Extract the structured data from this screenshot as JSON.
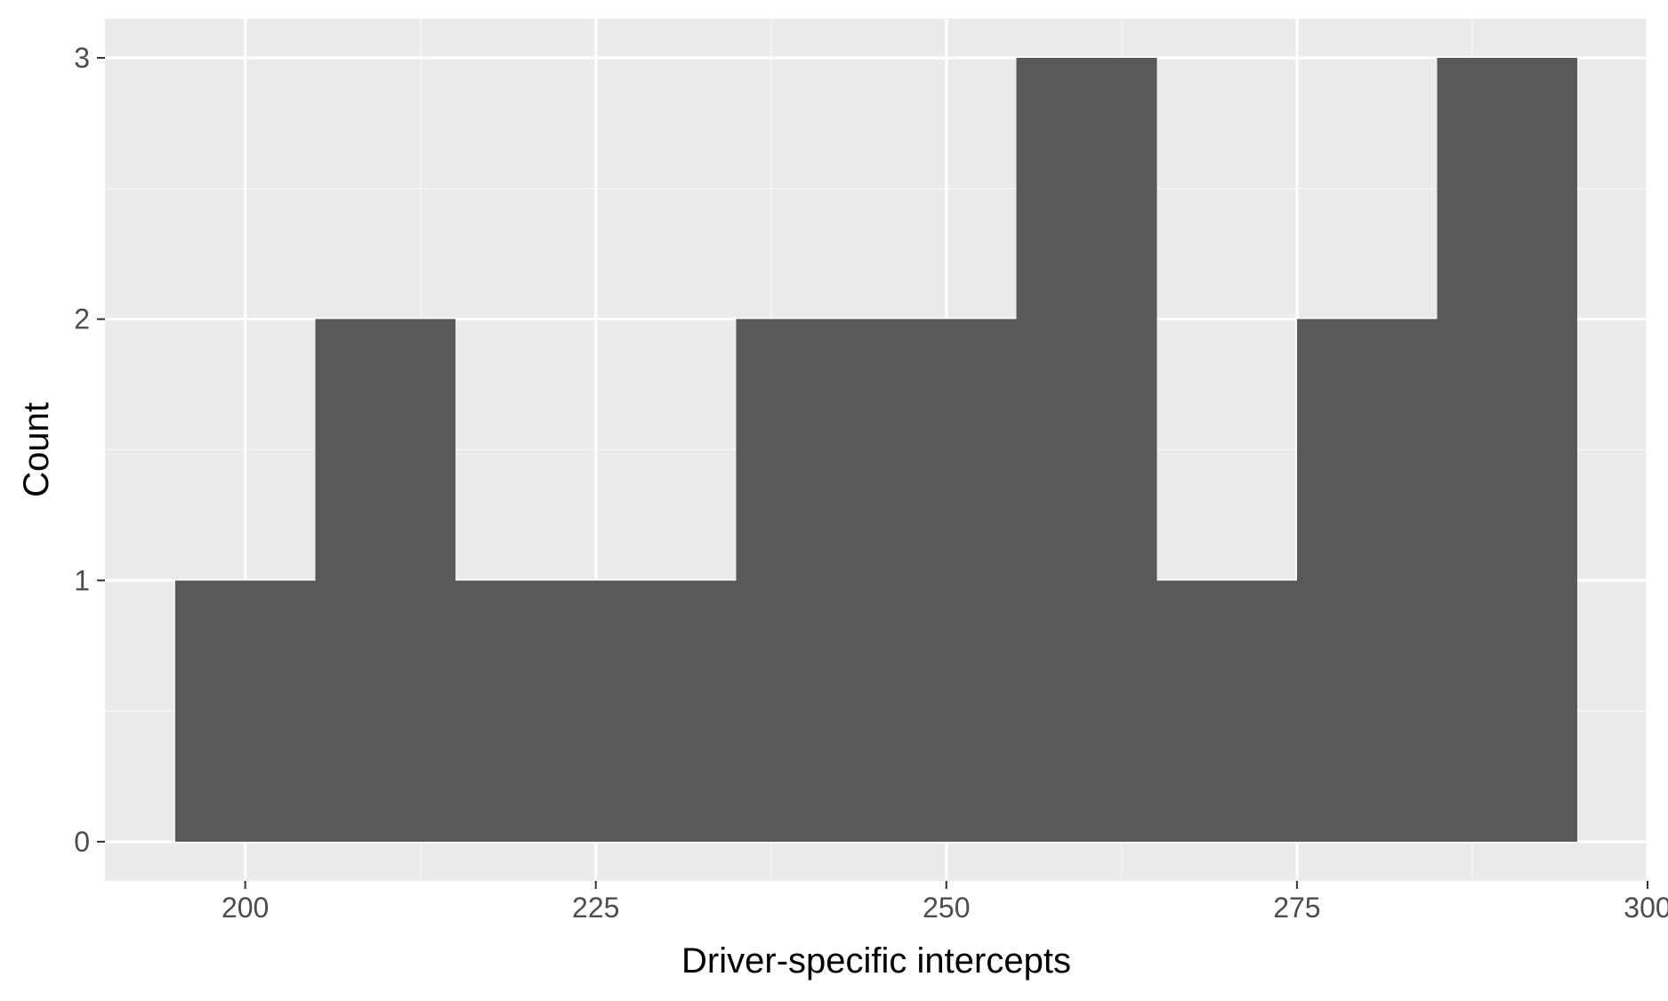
{
  "chart_data": {
    "type": "bar",
    "subtype": "histogram",
    "title": "",
    "xlabel": "Driver-specific intercepts",
    "ylabel": "Count",
    "xlim": [
      190,
      300
    ],
    "ylim": [
      -0.15,
      3.15
    ],
    "x_ticks": [
      200,
      225,
      250,
      275,
      300
    ],
    "y_ticks": [
      0,
      1,
      2,
      3
    ],
    "x_minor_ticks": [
      212.5,
      237.5,
      262.5,
      287.5
    ],
    "y_minor_ticks": [
      0.5,
      1.5,
      2.5
    ],
    "bin_width": 10,
    "bins": [
      {
        "x0": 195,
        "x1": 205,
        "count": 1
      },
      {
        "x0": 205,
        "x1": 215,
        "count": 2
      },
      {
        "x0": 215,
        "x1": 225,
        "count": 1
      },
      {
        "x0": 225,
        "x1": 235,
        "count": 1
      },
      {
        "x0": 235,
        "x1": 245,
        "count": 2
      },
      {
        "x0": 245,
        "x1": 255,
        "count": 2
      },
      {
        "x0": 255,
        "x1": 265,
        "count": 3
      },
      {
        "x0": 265,
        "x1": 275,
        "count": 1
      },
      {
        "x0": 275,
        "x1": 285,
        "count": 2
      },
      {
        "x0": 285,
        "x1": 295,
        "count": 3
      }
    ],
    "grid": true,
    "legend": "none",
    "colors": {
      "panel_background": "#ebebeb",
      "grid_major": "#ffffff",
      "grid_minor": "#f5f5f5",
      "bar_fill": "#595959",
      "tick_mark": "#333333",
      "tick_label": "#4d4d4d",
      "axis_title": "#000000"
    }
  }
}
